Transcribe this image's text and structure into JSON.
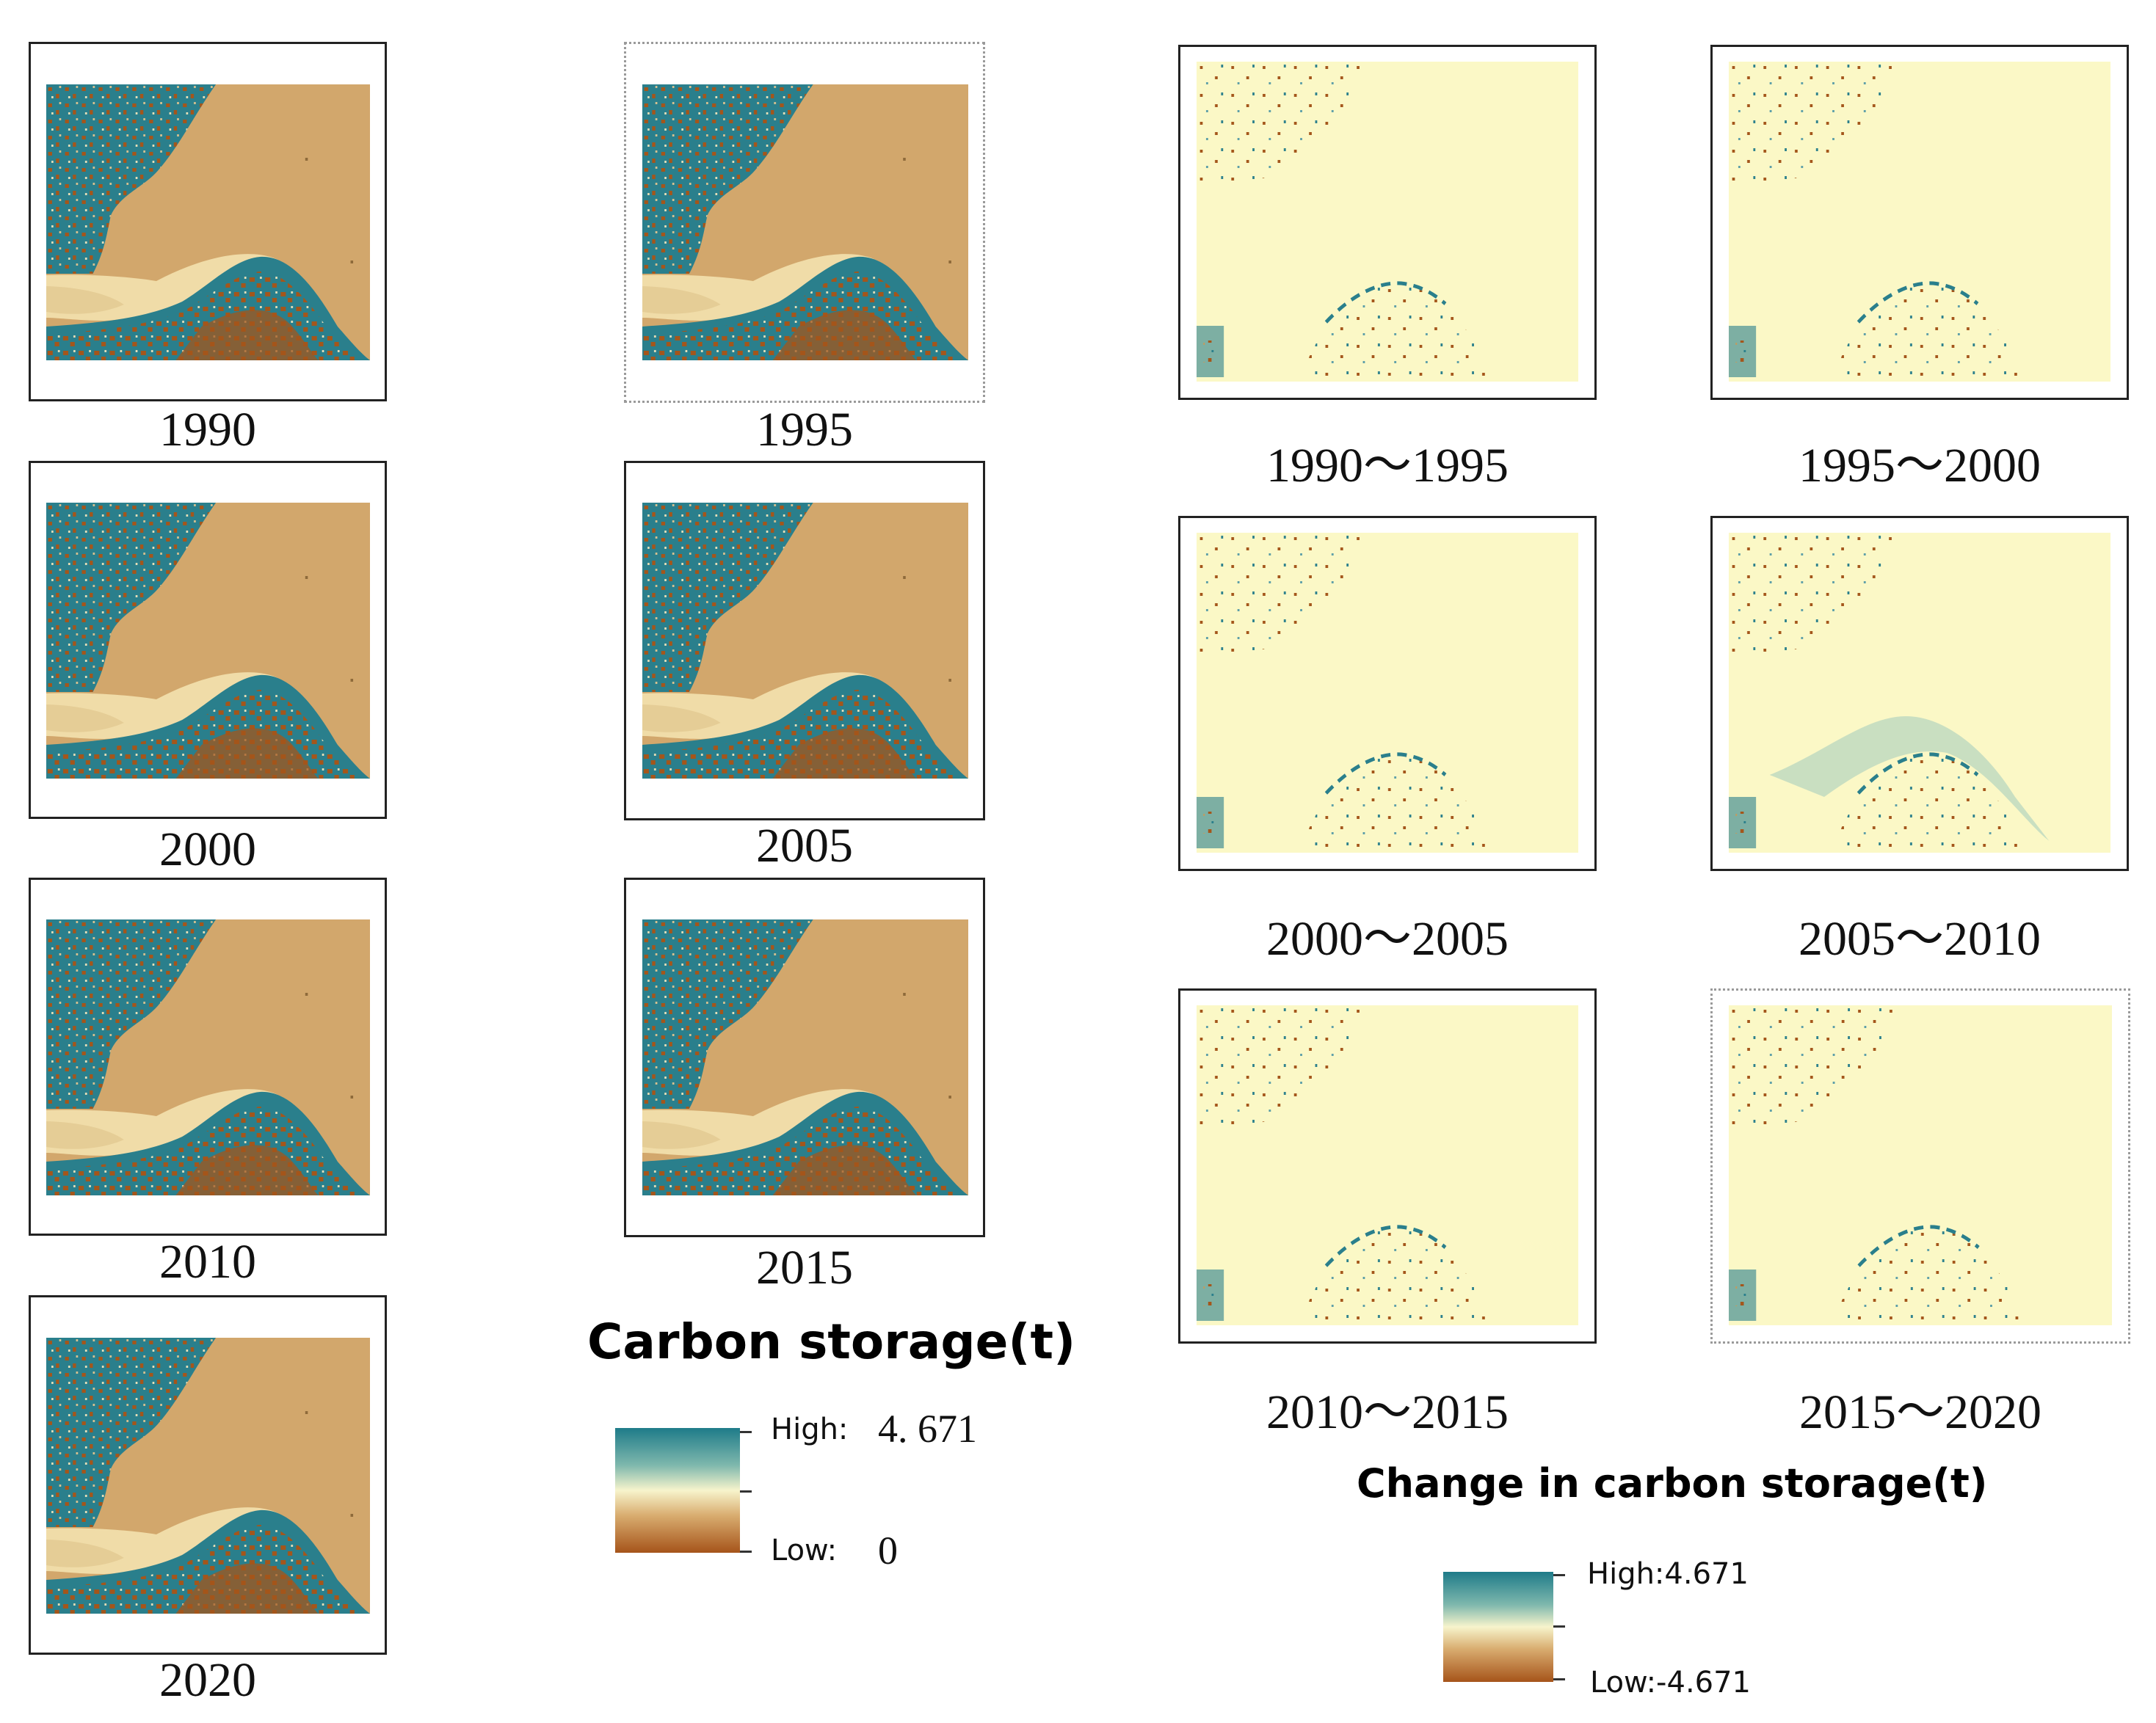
{
  "storage_maps": [
    {
      "year": "1990"
    },
    {
      "year": "1995"
    },
    {
      "year": "2000"
    },
    {
      "year": "2005"
    },
    {
      "year": "2010"
    },
    {
      "year": "2015"
    },
    {
      "year": "2020"
    }
  ],
  "change_maps": [
    {
      "period": "1990～1995"
    },
    {
      "period": "1995～2000"
    },
    {
      "period": "2000～2005"
    },
    {
      "period": "2005～2010"
    },
    {
      "period": "2010～2015"
    },
    {
      "period": "2015～2020"
    }
  ],
  "legend_storage": {
    "title": "Carbon storage(t)",
    "high_label": "High:",
    "high_value": "4. 671",
    "low_label": "Low:",
    "low_value": "0"
  },
  "legend_change": {
    "title": "Change in carbon storage(t)",
    "high": "High:4.671",
    "low": "Low:-4.671"
  },
  "colors": {
    "high": "#2a7f8c",
    "mid": "#f6f2c2",
    "low": "#a35518",
    "land": "#d2a76c",
    "change_bg": "#fbf8c6"
  }
}
